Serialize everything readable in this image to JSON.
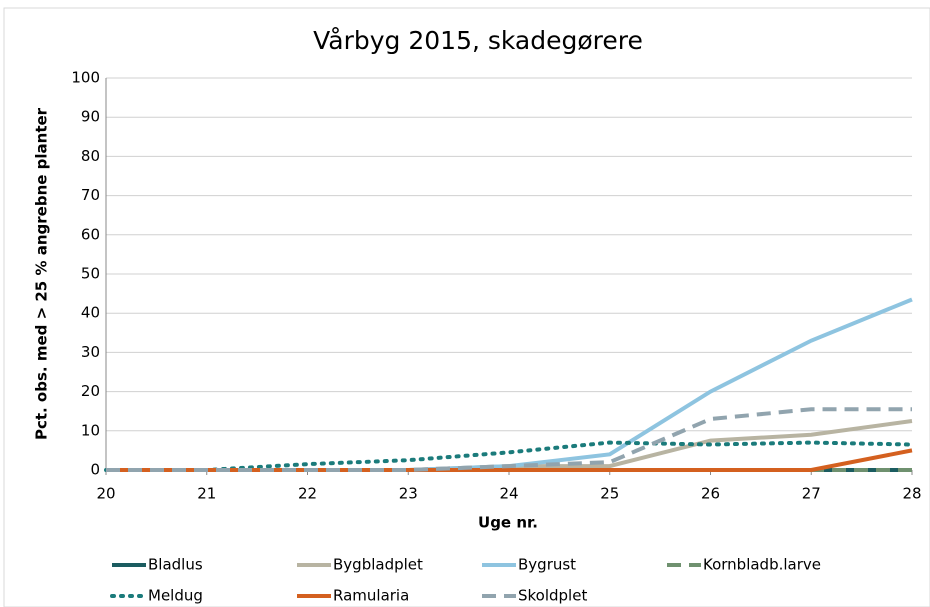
{
  "chart_data": {
    "type": "line",
    "title": "Vårbyg 2015, skadegørere",
    "x_label": "Uge nr.",
    "y_label": "Pct. obs. med > 25 % angrebne planter",
    "x": [
      20,
      21,
      22,
      23,
      24,
      25,
      26,
      27,
      28
    ],
    "xlim": [
      20,
      28
    ],
    "xticks": [
      20,
      21,
      22,
      23,
      24,
      25,
      26,
      27,
      28
    ],
    "ylim": [
      0,
      100
    ],
    "yticks": [
      0,
      10,
      20,
      30,
      40,
      50,
      60,
      70,
      80,
      90,
      100
    ],
    "grid": true,
    "legend": "bottom",
    "series": [
      {
        "name": "Bladlus",
        "color": "#1b5c60",
        "style": "solid",
        "values": [
          0,
          0,
          0,
          0,
          0,
          0,
          0,
          0,
          0
        ]
      },
      {
        "name": "Bygbladplet",
        "color": "#b8b4a2",
        "style": "solid",
        "values": [
          0,
          0,
          0,
          0,
          1,
          1,
          7.5,
          9,
          12.5
        ]
      },
      {
        "name": "Bygrust",
        "color": "#8ec4e0",
        "style": "solid",
        "values": [
          0,
          0,
          0,
          0,
          1,
          4,
          20,
          33,
          43.5
        ]
      },
      {
        "name": "Kornbladb.larve",
        "color": "#6f916f",
        "style": "dashed",
        "values": [
          0,
          0,
          0,
          0,
          0,
          0,
          0,
          0,
          0
        ]
      },
      {
        "name": "Meldug",
        "color": "#1b7b7b",
        "style": "dotted",
        "values": [
          0,
          0,
          1.5,
          2.5,
          4.5,
          7,
          6.5,
          7,
          6.5
        ]
      },
      {
        "name": "Ramularia",
        "color": "#d4601f",
        "style": "solid",
        "values": [
          0,
          0,
          0,
          0,
          0,
          0,
          0,
          0,
          5
        ]
      },
      {
        "name": "Skoldplet",
        "color": "#91a4ae",
        "style": "dashed",
        "values": [
          0,
          0,
          0,
          0,
          1,
          2,
          13,
          15.5,
          15.5
        ]
      }
    ]
  }
}
